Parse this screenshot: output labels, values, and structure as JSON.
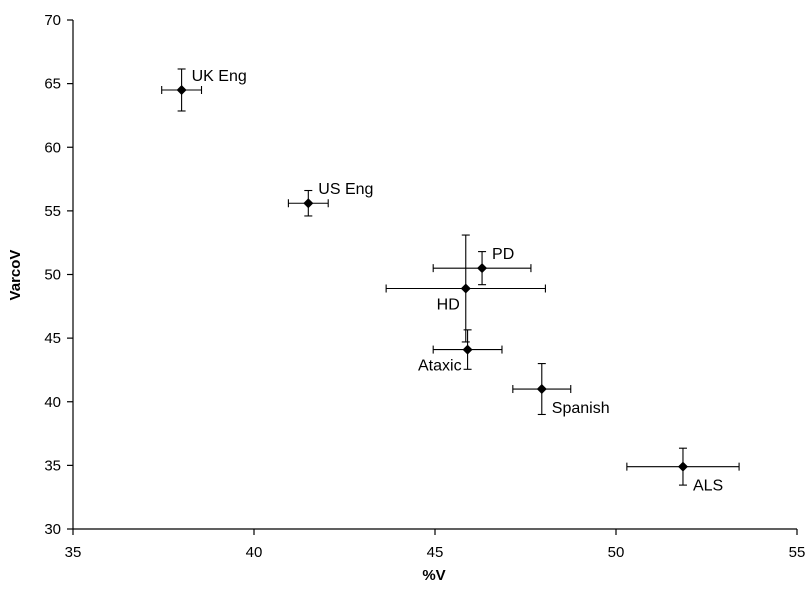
{
  "chart_data": {
    "type": "scatter",
    "xlabel": "%V",
    "ylabel": "VarcoV",
    "xlim": [
      35,
      55
    ],
    "ylim": [
      30,
      70
    ],
    "xticks": [
      35,
      40,
      45,
      50,
      55
    ],
    "yticks": [
      30,
      35,
      40,
      45,
      50,
      55,
      60,
      65,
      70
    ],
    "grid": false,
    "points": [
      {
        "label": "UK Eng",
        "x": 38.0,
        "y": 64.5,
        "xerr": 0.55,
        "yerr": 1.65,
        "label_pos": "upper-right"
      },
      {
        "label": "US Eng",
        "x": 41.5,
        "y": 55.6,
        "xerr": 0.55,
        "yerr": 1.0,
        "label_pos": "upper-right"
      },
      {
        "label": "PD",
        "x": 46.3,
        "y": 50.5,
        "xerr": 1.35,
        "yerr": 1.3,
        "label_pos": "upper-right"
      },
      {
        "label": "HD",
        "x": 45.85,
        "y": 48.9,
        "xerr": 2.2,
        "yerr": 4.2,
        "label_pos": "lower-left"
      },
      {
        "label": "Ataxic",
        "x": 45.9,
        "y": 44.1,
        "xerr": 0.95,
        "yerr": 1.55,
        "label_pos": "lower-left"
      },
      {
        "label": "Spanish",
        "x": 47.95,
        "y": 41.0,
        "xerr": 0.8,
        "yerr": 2.0,
        "label_pos": "lower-right"
      },
      {
        "label": "ALS",
        "x": 51.85,
        "y": 34.9,
        "xerr": 1.55,
        "yerr": 1.45,
        "label_pos": "lower-right"
      }
    ]
  }
}
